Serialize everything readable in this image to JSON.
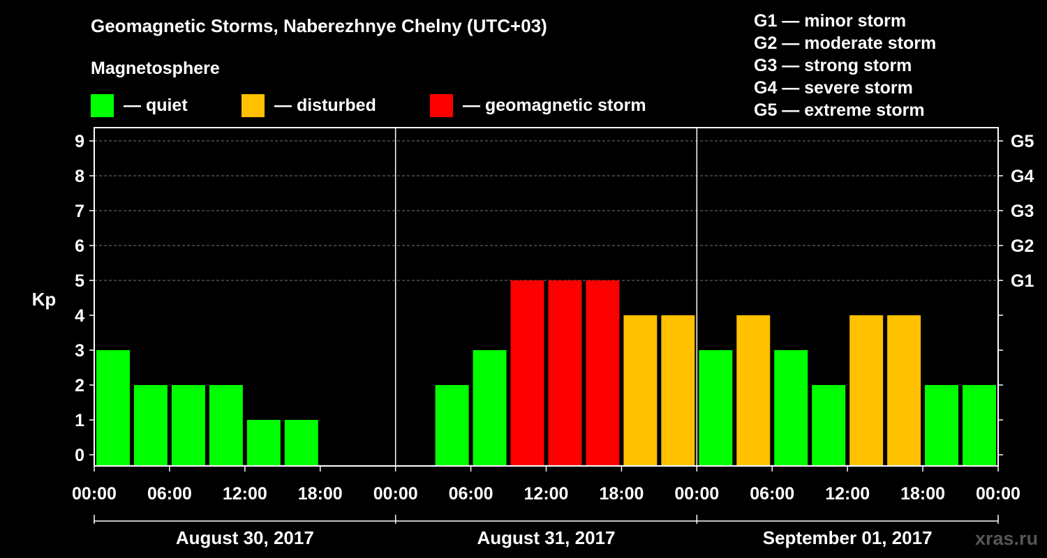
{
  "title": "Geomagnetic Storms, Naberezhnye Chelny (UTC+03)",
  "magnetosphere_heading": "Magnetosphere",
  "legend": [
    {
      "label": "— quiet",
      "color": "#00ff00"
    },
    {
      "label": "— disturbed",
      "color": "#ffc000"
    },
    {
      "label": "— geomagnetic storm",
      "color": "#ff0000"
    }
  ],
  "g_scale_legend": [
    "G1 — minor storm",
    "G2 — moderate storm",
    "G3 — strong storm",
    "G4 — severe storm",
    "G5 — extreme storm"
  ],
  "watermark": "xras.ru",
  "chart_data": {
    "type": "bar",
    "ylabel": "Kp",
    "ylim": [
      0,
      9
    ],
    "yticks": [
      0,
      1,
      2,
      3,
      4,
      5,
      6,
      7,
      8,
      9
    ],
    "right_tick_labels": [
      {
        "kp": 5,
        "label": "G1"
      },
      {
        "kp": 6,
        "label": "G2"
      },
      {
        "kp": 7,
        "label": "G3"
      },
      {
        "kp": 8,
        "label": "G4"
      },
      {
        "kp": 9,
        "label": "G5"
      }
    ],
    "grid": "dashed horizontal at Kp 5-9",
    "x_tick_labels": [
      "00:00",
      "06:00",
      "12:00",
      "18:00",
      "00:00",
      "06:00",
      "12:00",
      "18:00",
      "00:00",
      "06:00",
      "12:00",
      "18:00",
      "00:00"
    ],
    "days": [
      "August 30, 2017",
      "August 31, 2017",
      "September 01, 2017"
    ],
    "colors": {
      "quiet": "#00ff00",
      "disturbed": "#ffc000",
      "storm": "#ff0000"
    },
    "bars": [
      {
        "day": 0,
        "slot": 0,
        "kp": 3,
        "status": "quiet"
      },
      {
        "day": 0,
        "slot": 1,
        "kp": 2,
        "status": "quiet"
      },
      {
        "day": 0,
        "slot": 2,
        "kp": 2,
        "status": "quiet"
      },
      {
        "day": 0,
        "slot": 3,
        "kp": 2,
        "status": "quiet"
      },
      {
        "day": 0,
        "slot": 4,
        "kp": 1,
        "status": "quiet"
      },
      {
        "day": 0,
        "slot": 5,
        "kp": 1,
        "status": "quiet"
      },
      {
        "day": 1,
        "slot": 1,
        "kp": 2,
        "status": "quiet"
      },
      {
        "day": 1,
        "slot": 2,
        "kp": 3,
        "status": "quiet"
      },
      {
        "day": 1,
        "slot": 3,
        "kp": 5,
        "status": "storm"
      },
      {
        "day": 1,
        "slot": 4,
        "kp": 5,
        "status": "storm"
      },
      {
        "day": 1,
        "slot": 5,
        "kp": 5,
        "status": "storm"
      },
      {
        "day": 1,
        "slot": 6,
        "kp": 4,
        "status": "disturbed"
      },
      {
        "day": 1,
        "slot": 7,
        "kp": 4,
        "status": "disturbed"
      },
      {
        "day": 2,
        "slot": 0,
        "kp": 3,
        "status": "quiet"
      },
      {
        "day": 2,
        "slot": 1,
        "kp": 4,
        "status": "disturbed"
      },
      {
        "day": 2,
        "slot": 2,
        "kp": 3,
        "status": "quiet"
      },
      {
        "day": 2,
        "slot": 3,
        "kp": 2,
        "status": "quiet"
      },
      {
        "day": 2,
        "slot": 4,
        "kp": 4,
        "status": "disturbed"
      },
      {
        "day": 2,
        "slot": 5,
        "kp": 4,
        "status": "disturbed"
      },
      {
        "day": 2,
        "slot": 6,
        "kp": 2,
        "status": "quiet"
      },
      {
        "day": 2,
        "slot": 7,
        "kp": 2,
        "status": "quiet"
      }
    ]
  }
}
